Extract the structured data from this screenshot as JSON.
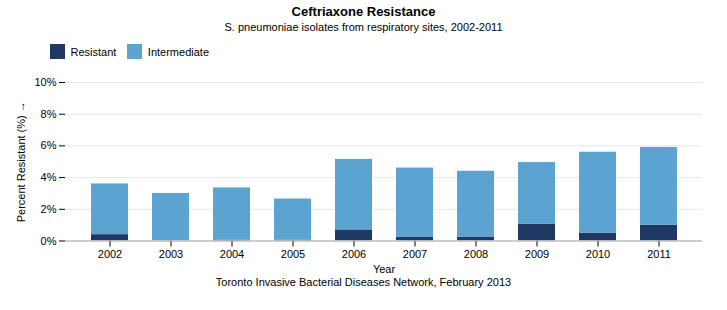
{
  "chart_data": {
    "type": "bar",
    "stacked": true,
    "title": "Ceftriaxone Resistance",
    "subtitle": "S. pneumoniae isolates from respiratory sites, 2002-2011",
    "xlabel": "Year",
    "ylabel": "Percent Resistant (%)",
    "caption": "Toronto Invasive Bacterial Diseases Network, February 2013",
    "categories": [
      "2002",
      "2003",
      "2004",
      "2005",
      "2006",
      "2007",
      "2008",
      "2009",
      "2010",
      "2011"
    ],
    "series": [
      {
        "name": "Resistant",
        "color": "#1f3864",
        "values": [
          0.4,
          0.0,
          0.05,
          0.05,
          0.7,
          0.25,
          0.25,
          1.05,
          0.5,
          1.0
        ]
      },
      {
        "name": "Intermediate",
        "color": "#5ba3d0",
        "values": [
          3.2,
          3.0,
          3.3,
          2.6,
          4.45,
          4.35,
          4.15,
          3.9,
          5.1,
          4.9
        ]
      }
    ],
    "ylim": [
      0,
      10
    ],
    "yticks": [
      {
        "value": 0,
        "label": "0%"
      },
      {
        "value": 2,
        "label": "2%"
      },
      {
        "value": 4,
        "label": "4%"
      },
      {
        "value": 6,
        "label": "6%"
      },
      {
        "value": 8,
        "label": "8%"
      },
      {
        "value": 10,
        "label": "10%"
      }
    ],
    "grid": true,
    "legend": "upper left"
  }
}
